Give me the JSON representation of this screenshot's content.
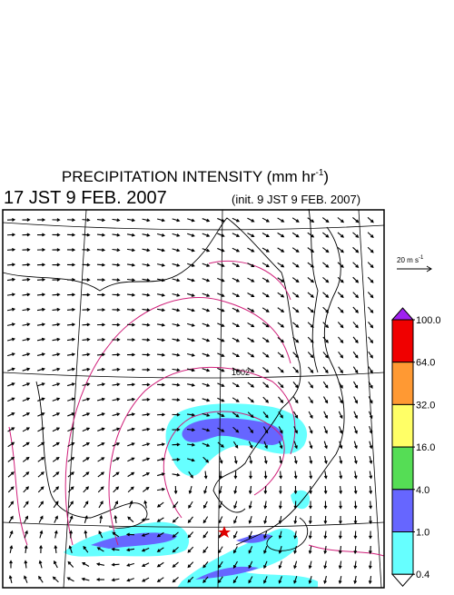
{
  "title": {
    "text": "PRECIPITATION INTENSITY (mm hr",
    "exponent": "-1",
    "close": ")"
  },
  "valid_time": "17 JST 9 FEB. 2007",
  "init_time": "(init. 9 JST 9 FEB. 2007)",
  "wind_scale": {
    "text": "20 m s",
    "exponent": "-1"
  },
  "contour_label": "1002",
  "colorbar": {
    "levels": [
      {
        "value": 100,
        "label": "100.0"
      },
      {
        "value": 64,
        "label": "64.0"
      },
      {
        "value": 32,
        "label": "32.0"
      },
      {
        "value": 16,
        "label": "16.0"
      },
      {
        "value": 4,
        "label": "4.0"
      },
      {
        "value": 1,
        "label": "1.0"
      },
      {
        "value": 0.4,
        "label": "0.4"
      }
    ],
    "colors": [
      "#f00000",
      "#ff9933",
      "#ffff66",
      "#55dd55",
      "#6666ff",
      "#66ffff"
    ],
    "over_color": "#a020f0",
    "under_color": "#ffffff"
  }
}
